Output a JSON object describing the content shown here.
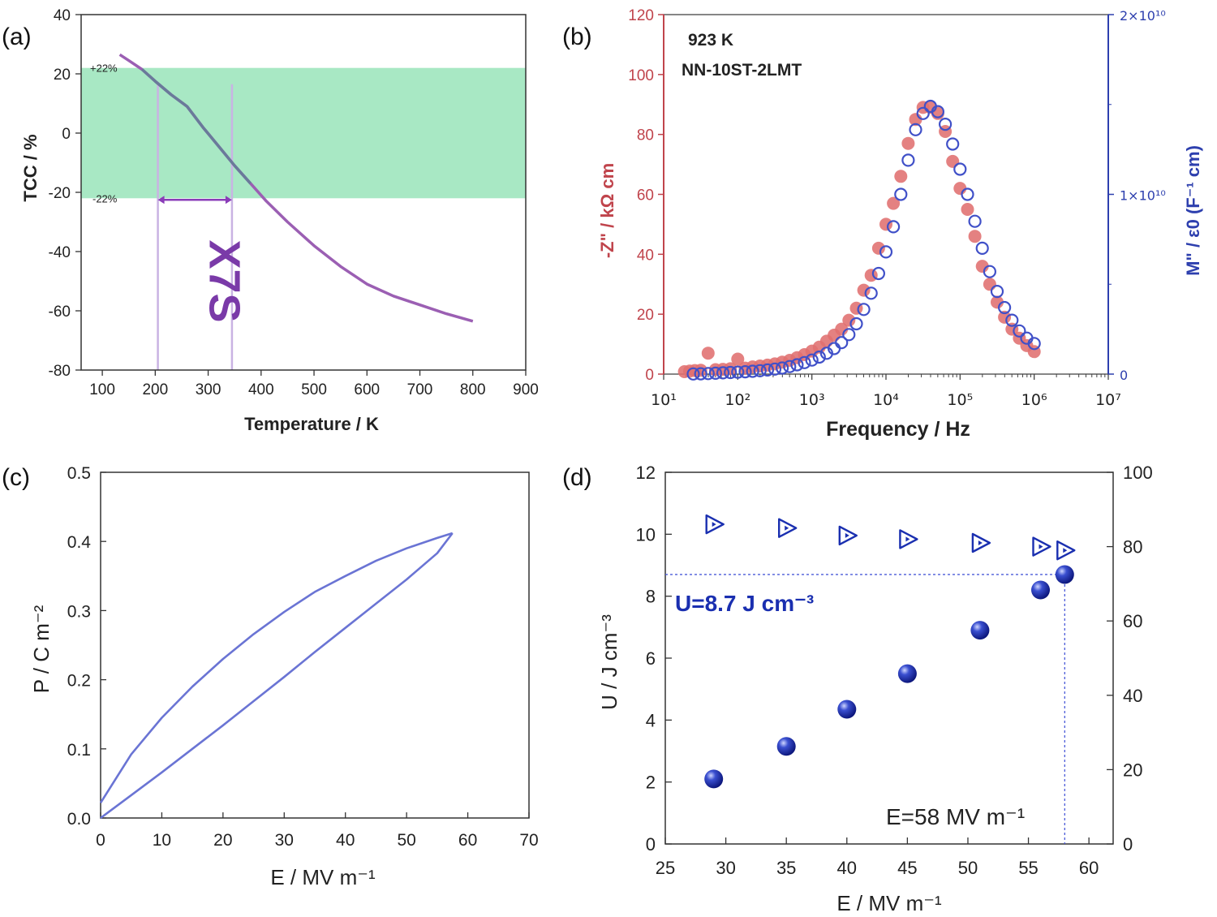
{
  "panels": {
    "a": {
      "label": "(a)",
      "chart_data": {
        "type": "line",
        "xlabel": "Temperature / K",
        "ylabel": "TCC / %",
        "xlim": [
          60,
          900
        ],
        "ylim": [
          -80,
          40
        ],
        "xticks": [
          100,
          200,
          300,
          400,
          500,
          600,
          700,
          800,
          900
        ],
        "yticks": [
          -80,
          -60,
          -40,
          -20,
          0,
          20,
          40
        ],
        "band": {
          "upper": 22,
          "lower": -22,
          "color": "#a8e8c4",
          "upper_label": "+22%",
          "lower_label": "-22%"
        },
        "range_lines": {
          "x": [
            205,
            345
          ],
          "color": "#c9b3e3"
        },
        "annotation": "X7S",
        "series": [
          {
            "color": "#9b5fb3",
            "x": [
              133,
              150,
              175,
              200,
              230,
              260,
              290,
              320,
              350,
              380,
              410,
              450,
              500,
              550,
              600,
              650,
              700,
              750,
              800
            ],
            "y": [
              26.5,
              24.5,
              21.5,
              17.5,
              13,
              9,
              2,
              -4.5,
              -11,
              -17,
              -23,
              -30,
              -38,
              -45,
              -51,
              -55,
              -58,
              -61,
              -63.5
            ]
          }
        ],
        "overlay_color": "#6a7a9a"
      }
    },
    "b": {
      "label": "(b)",
      "chart_data": {
        "type": "scatter",
        "title": "923 K",
        "subtitle": "NN-10ST-2LMT",
        "xlabel": "Frequency / Hz",
        "ylabel": "-Z\" / kΩ cm",
        "y2label": "M\" / ε0 (F⁻¹ cm)",
        "xscale": "log",
        "xlim": [
          10,
          10000000
        ],
        "ylim": [
          0,
          120
        ],
        "y2lim": [
          0,
          20000000000
        ],
        "xticks": [
          "10¹",
          "10²",
          "10³",
          "10⁴",
          "10⁵",
          "10⁶",
          "10⁷"
        ],
        "yticks": [
          0,
          20,
          40,
          60,
          80,
          100,
          120
        ],
        "y2ticks": [
          "0",
          "1×10¹⁰",
          "2×10¹⁰"
        ],
        "left_axis_color": "#c0444c",
        "right_axis_color": "#2d3fae",
        "series": [
          {
            "axis": "left",
            "marker": "filled-circle",
            "color": "#e07070",
            "logf": [
              1.28,
              1.35,
              1.42,
              1.5,
              1.6,
              1.7,
              1.8,
              1.9,
              2.0,
              2.1,
              2.2,
              2.3,
              2.4,
              2.5,
              2.6,
              2.7,
              2.8,
              2.9,
              3.0,
              3.1,
              3.2,
              3.3,
              3.4,
              3.5,
              3.6,
              3.7,
              3.8,
              3.9,
              4.0,
              4.1,
              4.2,
              4.3,
              4.4,
              4.5,
              4.6,
              4.7,
              4.8,
              4.9,
              5.0,
              5.1,
              5.2,
              5.3,
              5.4,
              5.5,
              5.6,
              5.7,
              5.8,
              5.9,
              6.0
            ],
            "y": [
              0.8,
              1.0,
              1.2,
              1.3,
              7,
              1.5,
              1.6,
              1.8,
              5,
              2.0,
              2.4,
              2.7,
              3,
              3.4,
              4,
              4.6,
              5.5,
              6.5,
              7.7,
              9,
              11,
              13,
              15,
              18,
              22,
              28,
              33,
              42,
              50,
              57,
              66,
              77,
              85,
              89,
              89,
              87,
              81,
              71,
              62,
              55,
              46,
              36,
              30,
              24,
              19,
              15,
              12,
              9.5,
              7.5
            ]
          },
          {
            "axis": "right",
            "marker": "open-circle",
            "color": "#4050c8",
            "logf": [
              1.4,
              1.5,
              1.6,
              1.7,
              1.8,
              1.9,
              2.0,
              2.1,
              2.2,
              2.3,
              2.4,
              2.5,
              2.6,
              2.7,
              2.8,
              2.9,
              3.0,
              3.1,
              3.2,
              3.3,
              3.4,
              3.5,
              3.6,
              3.7,
              3.8,
              3.9,
              4.0,
              4.1,
              4.2,
              4.3,
              4.4,
              4.5,
              4.6,
              4.7,
              4.8,
              4.9,
              5.0,
              5.1,
              5.2,
              5.3,
              5.4,
              5.5,
              5.6,
              5.7,
              5.8,
              5.9,
              6.0
            ],
            "y": [
              0.01,
              0.02,
              0.03,
              0.05,
              0.07,
              0.09,
              0.11,
              0.13,
              0.16,
              0.19,
              0.23,
              0.28,
              0.34,
              0.42,
              0.52,
              0.64,
              0.78,
              0.95,
              1.16,
              1.42,
              1.75,
              2.2,
              2.8,
              3.6,
              4.5,
              5.6,
              6.8,
              8.2,
              10.0,
              11.9,
              13.6,
              14.5,
              14.9,
              14.6,
              13.9,
              12.8,
              11.4,
              10.0,
              8.5,
              7.0,
              5.7,
              4.6,
              3.7,
              3.0,
              2.4,
              2.0,
              1.7
            ]
          }
        ],
        "y2_unit_note": "right-axis values in units of 10^9"
      }
    },
    "c": {
      "label": "(c)",
      "chart_data": {
        "type": "line",
        "xlabel": "E / MV m⁻¹",
        "ylabel": "P / C m⁻²",
        "xlim": [
          0,
          70
        ],
        "ylim": [
          0,
          0.5
        ],
        "xticks": [
          0,
          10,
          20,
          30,
          40,
          50,
          60,
          70
        ],
        "yticks": [
          "0.0",
          "0.1",
          "0.2",
          "0.3",
          "0.4",
          "0.5"
        ],
        "series": [
          {
            "name": "",
            "color": "#6a74d4",
            "x": [
              0,
              5,
              10,
              15,
              20,
              25,
              30,
              35,
              40,
              45,
              50,
              55,
              57.5
            ],
            "y": [
              0,
              0.033,
              0.066,
              0.1,
              0.134,
              0.169,
              0.204,
              0.24,
              0.275,
              0.31,
              0.345,
              0.383,
              0.412
            ]
          },
          {
            "name": "",
            "color": "#6a74d4",
            "x": [
              57.5,
              55,
              50,
              45,
              40,
              35,
              30,
              25,
              20,
              15,
              10,
              5,
              0
            ],
            "y": [
              0.412,
              0.405,
              0.39,
              0.372,
              0.35,
              0.327,
              0.298,
              0.266,
              0.23,
              0.19,
              0.145,
              0.092,
              0.022
            ]
          }
        ]
      }
    },
    "d": {
      "label": "(d)",
      "chart_data": {
        "type": "scatter",
        "xlabel": "E / MV m⁻¹",
        "ylabel": "U / J cm⁻³",
        "xlim": [
          25,
          62
        ],
        "ylim": [
          0,
          12
        ],
        "y2lim": [
          0,
          100
        ],
        "xticks": [
          25,
          30,
          35,
          40,
          45,
          50,
          55,
          60
        ],
        "yticks": [
          0,
          2,
          4,
          6,
          8,
          10,
          12
        ],
        "y2ticks": [
          0,
          20,
          40,
          60,
          80,
          100
        ],
        "annotation_u": "U=8.7 J cm⁻³",
        "annotation_e": "E=58 MV m⁻¹",
        "guide": {
          "x": 58,
          "y": 8.7
        },
        "series": [
          {
            "axis": "left",
            "marker": "sphere",
            "color": "#1a2fb0",
            "x": [
              29,
              35,
              40,
              45,
              51,
              56,
              58
            ],
            "y": [
              2.1,
              3.15,
              4.35,
              5.5,
              6.9,
              8.2,
              8.7
            ]
          },
          {
            "axis": "right",
            "marker": "triangle-right-open",
            "color": "#1a2fb0",
            "x": [
              29,
              35,
              40,
              45,
              51,
              56,
              58
            ],
            "y": [
              86,
              85,
              83,
              82,
              81,
              80,
              79
            ]
          }
        ]
      }
    }
  }
}
